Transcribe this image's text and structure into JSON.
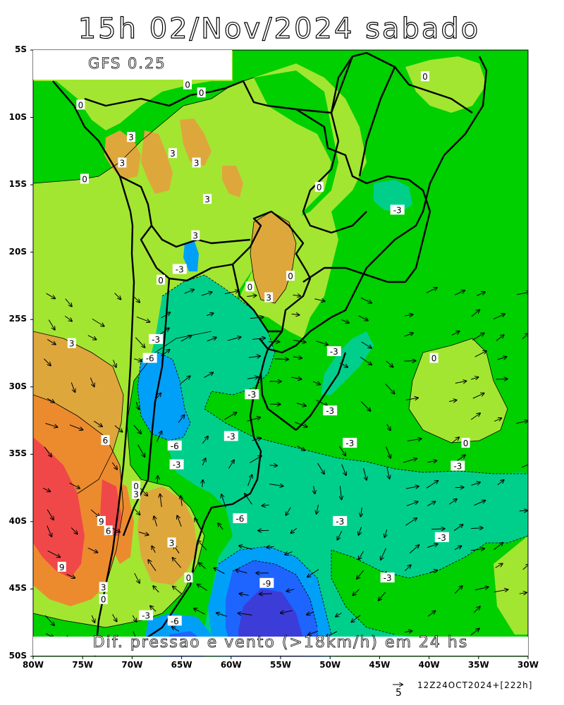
{
  "title": "15h 02/Nov/2024 sabado",
  "model": "GFS 0.25",
  "caption": "Dif. pressao e vento (>18km/h) em 24 hs",
  "run_info": "12Z24OCT2024+[222h]",
  "reference_vector": "5",
  "lat_labels": [
    "5S",
    "10S",
    "15S",
    "20S",
    "25S",
    "30S",
    "35S",
    "40S",
    "45S",
    "50S"
  ],
  "lon_labels": [
    "80W",
    "75W",
    "70W",
    "65W",
    "60W",
    "55W",
    "50W",
    "45W",
    "40W",
    "35W",
    "30W"
  ],
  "contour_labels": [
    {
      "text": "0",
      "lon": -75.2,
      "lat": -9.1
    },
    {
      "text": "0",
      "lon": -74.8,
      "lat": -14.6
    },
    {
      "text": "3",
      "lon": -70.1,
      "lat": -11.5
    },
    {
      "text": "3",
      "lon": -71.0,
      "lat": -13.4
    },
    {
      "text": "3",
      "lon": -65.9,
      "lat": -12.7
    },
    {
      "text": "3",
      "lon": -63.5,
      "lat": -13.4
    },
    {
      "text": "3",
      "lon": -62.4,
      "lat": -16.1
    },
    {
      "text": "3",
      "lon": -63.6,
      "lat": -18.8
    },
    {
      "text": "0",
      "lon": -63.0,
      "lat": -8.2
    },
    {
      "text": "0",
      "lon": -51.1,
      "lat": -15.2
    },
    {
      "text": "0",
      "lon": -40.4,
      "lat": -7.0
    },
    {
      "text": "0",
      "lon": -64.4,
      "lat": -7.6
    },
    {
      "text": "-3",
      "lon": -43.2,
      "lat": -16.9
    },
    {
      "text": "-3",
      "lon": -65.2,
      "lat": -21.3
    },
    {
      "text": "0",
      "lon": -67.1,
      "lat": -22.1
    },
    {
      "text": "0",
      "lon": -58.1,
      "lat": -22.6
    },
    {
      "text": "3",
      "lon": -56.2,
      "lat": -23.4
    },
    {
      "text": "0",
      "lon": -54.0,
      "lat": -21.8
    },
    {
      "text": "-3",
      "lon": -67.6,
      "lat": -26.5
    },
    {
      "text": "-6",
      "lon": -68.2,
      "lat": -27.9
    },
    {
      "text": "3",
      "lon": -76.1,
      "lat": -26.8
    },
    {
      "text": "-3",
      "lon": -49.6,
      "lat": -27.4
    },
    {
      "text": "0",
      "lon": -39.5,
      "lat": -27.9
    },
    {
      "text": "-3",
      "lon": -57.9,
      "lat": -30.6
    },
    {
      "text": "-3",
      "lon": -50.0,
      "lat": -31.8
    },
    {
      "text": "-3",
      "lon": -60.0,
      "lat": -33.7
    },
    {
      "text": "-3",
      "lon": -48.0,
      "lat": -34.2
    },
    {
      "text": "0",
      "lon": -36.3,
      "lat": -34.2
    },
    {
      "text": "-6",
      "lon": -65.7,
      "lat": -34.4
    },
    {
      "text": "-3",
      "lon": -65.5,
      "lat": -35.8
    },
    {
      "text": "-3",
      "lon": -37.1,
      "lat": -35.9
    },
    {
      "text": "6",
      "lon": -72.7,
      "lat": -34.0
    },
    {
      "text": "0",
      "lon": -69.6,
      "lat": -37.4
    },
    {
      "text": "3",
      "lon": -69.6,
      "lat": -38.0
    },
    {
      "text": "9",
      "lon": -73.1,
      "lat": -40.0
    },
    {
      "text": "6",
      "lon": -72.4,
      "lat": -40.7
    },
    {
      "text": "-6",
      "lon": -59.1,
      "lat": -39.8
    },
    {
      "text": "-3",
      "lon": -49.0,
      "lat": -40.0
    },
    {
      "text": "-3",
      "lon": -38.7,
      "lat": -41.2
    },
    {
      "text": "3",
      "lon": -66.0,
      "lat": -41.6
    },
    {
      "text": "9",
      "lon": -77.1,
      "lat": -43.4
    },
    {
      "text": "-9",
      "lon": -56.4,
      "lat": -44.6
    },
    {
      "text": "-3",
      "lon": -44.2,
      "lat": -44.2
    },
    {
      "text": "0",
      "lon": -64.3,
      "lat": -44.2
    },
    {
      "text": "3",
      "lon": -72.9,
      "lat": -44.9
    },
    {
      "text": "0",
      "lon": -72.9,
      "lat": -45.8
    },
    {
      "text": "-3",
      "lon": -68.6,
      "lat": -47.0
    },
    {
      "text": "-6",
      "lon": -65.7,
      "lat": -47.4
    }
  ],
  "colors": {
    "lt_neg9": "#3c3cd8",
    "neg9_neg6": "#1e64ff",
    "neg6_neg3": "#00a0f8",
    "neg3_0": "#00cf8c",
    "0_3": "#00cf00",
    "3_6": "#a2e632",
    "6_9_a": "#dea73c",
    "6_9_b": "#ec8b2e",
    "gt_9": "#f04848",
    "vectors": "#000000"
  }
}
